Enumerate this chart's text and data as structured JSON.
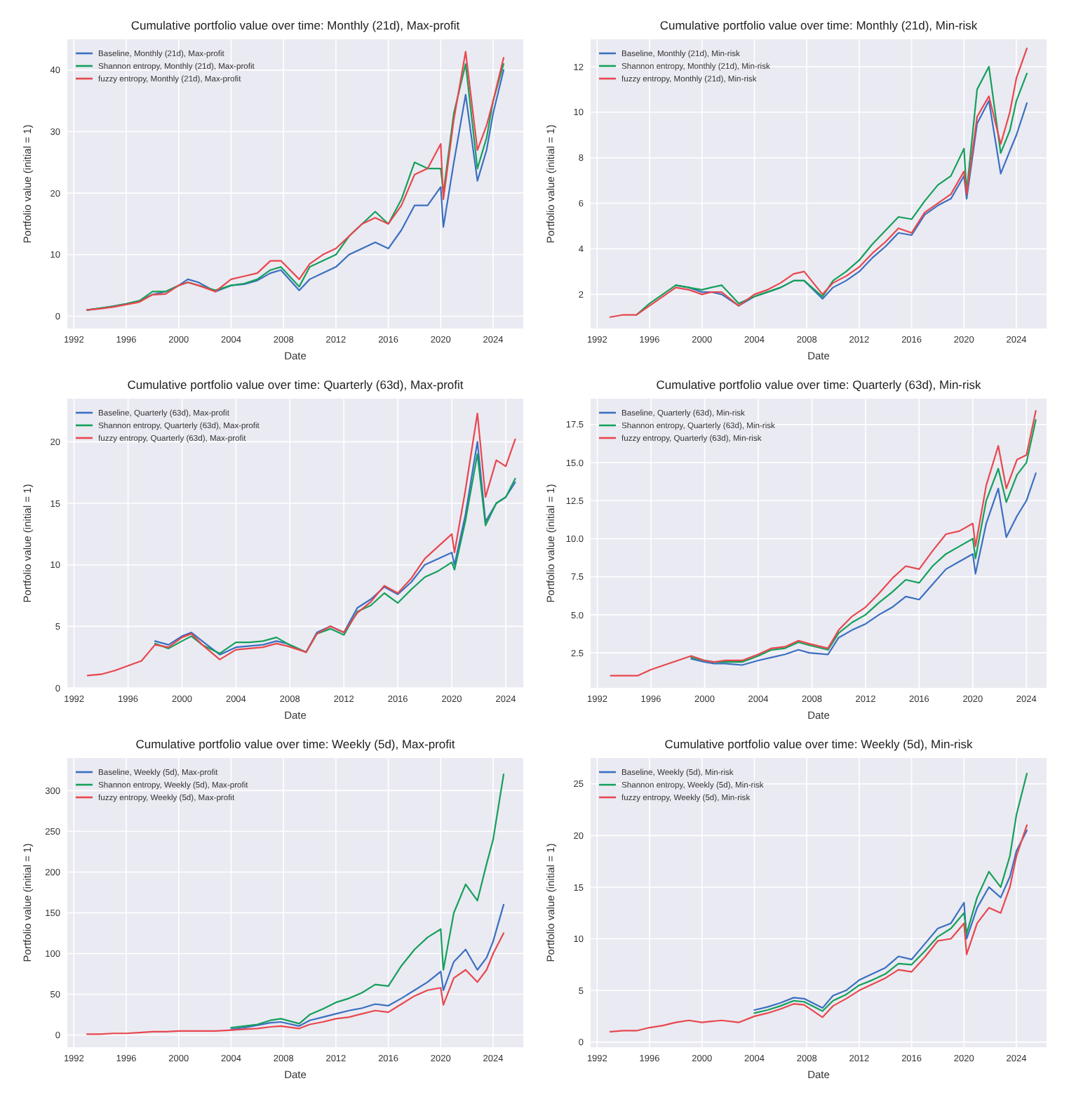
{
  "chart_data": [
    {
      "type": "line",
      "title": "Cumulative portfolio value over time: Monthly (21d), Max-profit",
      "xlabel": "Date",
      "ylabel": "Portfolio value (initial = 1)",
      "legend": "top left",
      "grid": true,
      "xlim": [
        1991.5,
        2026.3
      ],
      "xticks": [
        1992,
        1996,
        2000,
        2004,
        2008,
        2012,
        2016,
        2020,
        2024
      ],
      "ylim": [
        -2,
        45
      ],
      "yticks": [
        0,
        10,
        20,
        30,
        40
      ],
      "x": [
        1993,
        1994,
        1995,
        1996,
        1997,
        1998,
        1999,
        2000,
        2000.7,
        2001.5,
        2002.8,
        2004,
        2005,
        2006,
        2007,
        2007.8,
        2009.2,
        2010,
        2011,
        2012,
        2013,
        2014,
        2015,
        2016,
        2017,
        2018,
        2019,
        2020.0,
        2020.2,
        2021,
        2021.9,
        2022.8,
        2023.5,
        2024,
        2024.8
      ],
      "series": [
        {
          "name": "Baseline, Monthly (21d), Max-profit",
          "color": "#3a6fc1",
          "values": [
            1,
            1.3,
            1.6,
            2,
            2.5,
            3.5,
            4,
            5,
            6,
            5.5,
            4,
            5,
            5.2,
            5.8,
            7,
            7.5,
            4.2,
            6,
            7,
            8,
            10,
            11,
            12,
            11,
            14,
            18,
            18,
            21,
            14.5,
            25,
            36,
            22,
            27,
            33,
            40
          ]
        },
        {
          "name": "Shannon entropy, Monthly (21d), Max-profit",
          "color": "#14a05a",
          "values": [
            1,
            1.3,
            1.6,
            2,
            2.5,
            4,
            4,
            5,
            5.5,
            5,
            4.2,
            5,
            5.3,
            6,
            7.5,
            8,
            4.8,
            8,
            9,
            10,
            13,
            15,
            17,
            15,
            19,
            25,
            24,
            24,
            20,
            33,
            41,
            24,
            29,
            35,
            41
          ]
        },
        {
          "name": "fuzzy entropy, Monthly (21d), Max-profit",
          "color": "#e8474d",
          "values": [
            1,
            1.2,
            1.5,
            1.9,
            2.3,
            3.5,
            3.6,
            5,
            5.5,
            5,
            4,
            6,
            6.5,
            7,
            9,
            9,
            6,
            8.5,
            10,
            11,
            13,
            15,
            16,
            15,
            18,
            23,
            24,
            28,
            19,
            32,
            43,
            27,
            31,
            35,
            42
          ]
        }
      ]
    },
    {
      "type": "line",
      "title": "Cumulative portfolio value over time: Monthly (21d), Min-risk",
      "xlabel": "Date",
      "ylabel": "Portfolio value (initial = 1)",
      "legend": "top left",
      "grid": true,
      "xlim": [
        1991.5,
        2026.3
      ],
      "xticks": [
        1992,
        1996,
        2000,
        2004,
        2008,
        2012,
        2016,
        2020,
        2024
      ],
      "ylim": [
        0.5,
        13.2
      ],
      "yticks": [
        2,
        4,
        6,
        8,
        10,
        12
      ],
      "x": [
        1993,
        1994,
        1995,
        1996,
        1997,
        1998,
        1999,
        2000,
        2000.7,
        2001.5,
        2002.8,
        2004,
        2005,
        2006,
        2007,
        2007.8,
        2009.2,
        2010,
        2011,
        2012,
        2013,
        2014,
        2015,
        2016,
        2017,
        2018,
        2019,
        2020.0,
        2020.2,
        2021,
        2021.9,
        2022.8,
        2023.5,
        2024,
        2024.8
      ],
      "series": [
        {
          "name": "Baseline, Monthly (21d), Min-risk",
          "color": "#3a6fc1",
          "values": [
            null,
            null,
            null,
            null,
            null,
            2.4,
            2.3,
            2.1,
            2.1,
            2.0,
            1.5,
            1.9,
            2.1,
            2.3,
            2.6,
            2.6,
            1.8,
            2.3,
            2.6,
            3.0,
            3.6,
            4.1,
            4.7,
            4.6,
            5.5,
            5.9,
            6.2,
            7.2,
            6.2,
            9.5,
            10.5,
            7.3,
            8.3,
            9,
            10.4
          ]
        },
        {
          "name": "Shannon entropy, Monthly (21d), Min-risk",
          "color": "#14a05a",
          "values": [
            null,
            null,
            1.1,
            1.6,
            2.0,
            2.4,
            2.3,
            2.2,
            2.3,
            2.4,
            1.6,
            1.9,
            2.1,
            2.3,
            2.6,
            2.6,
            1.9,
            2.6,
            3.0,
            3.5,
            4.2,
            4.8,
            5.4,
            5.3,
            6.1,
            6.8,
            7.2,
            8.4,
            6.5,
            11,
            12,
            8.2,
            9.2,
            10.5,
            11.7
          ]
        },
        {
          "name": "fuzzy entropy, Monthly (21d), Min-risk",
          "color": "#e8474d",
          "values": [
            1,
            1.1,
            1.1,
            1.5,
            1.9,
            2.3,
            2.2,
            2.0,
            2.1,
            2.1,
            1.5,
            2.0,
            2.2,
            2.5,
            2.9,
            3.0,
            2.0,
            2.5,
            2.8,
            3.2,
            3.8,
            4.3,
            4.9,
            4.7,
            5.6,
            6.0,
            6.4,
            7.4,
            6.4,
            9.8,
            10.7,
            8.6,
            10,
            11.5,
            12.8
          ]
        }
      ]
    },
    {
      "type": "line",
      "title": "Cumulative portfolio value over time: Quarterly (63d), Max-profit",
      "xlabel": "Date",
      "ylabel": "Portfolio value (initial = 1)",
      "legend": "top left",
      "grid": true,
      "xlim": [
        1991.5,
        2025.3
      ],
      "xticks": [
        1992,
        1996,
        2000,
        2004,
        2008,
        2012,
        2016,
        2020,
        2024
      ],
      "ylim": [
        0,
        23.5
      ],
      "yticks": [
        0,
        5,
        10,
        15,
        20
      ],
      "x": [
        1993,
        1994,
        1995,
        1996,
        1997,
        1998,
        1999,
        2000,
        2000.7,
        2001.5,
        2002.8,
        2004,
        2005,
        2006,
        2007,
        2007.8,
        2009.2,
        2010,
        2011,
        2012,
        2013,
        2014,
        2015,
        2016,
        2017,
        2018,
        2019,
        2020.0,
        2020.2,
        2021,
        2021.9,
        2022.5,
        2023.3,
        2024,
        2024.7
      ],
      "series": [
        {
          "name": "Baseline, Quarterly (63d), Max-profit",
          "color": "#3a6fc1",
          "values": [
            null,
            null,
            null,
            null,
            null,
            3.8,
            3.5,
            4.2,
            4.5,
            3.8,
            2.7,
            3.3,
            3.4,
            3.5,
            3.8,
            3.6,
            2.9,
            4.5,
            5,
            4.5,
            6.5,
            7.2,
            8.2,
            7.6,
            8.6,
            10,
            10.5,
            11,
            10,
            14,
            20,
            13.5,
            15,
            15.5,
            16.7
          ]
        },
        {
          "name": "Shannon entropy, Quarterly (63d), Max-profit",
          "color": "#14a05a",
          "values": [
            null,
            null,
            null,
            null,
            null,
            3.6,
            3.2,
            3.8,
            4.2,
            3.5,
            2.8,
            3.7,
            3.7,
            3.8,
            4.1,
            3.6,
            2.9,
            4.4,
            4.8,
            4.3,
            6.2,
            6.7,
            7.7,
            6.9,
            8,
            9,
            9.5,
            10.2,
            9.6,
            13.5,
            19,
            13.2,
            15,
            15.5,
            17.0
          ]
        },
        {
          "name": "fuzzy entropy, Quarterly (63d), Max-profit",
          "color": "#e8474d",
          "values": [
            1,
            1.1,
            1.4,
            1.8,
            2.2,
            3.5,
            3.3,
            4.1,
            4.4,
            3.5,
            2.3,
            3.1,
            3.2,
            3.3,
            3.6,
            3.4,
            2.9,
            4.4,
            5,
            4.5,
            6.1,
            7,
            8.3,
            7.7,
            8.9,
            10.5,
            11.5,
            12.5,
            11,
            16,
            22.3,
            15.5,
            18.5,
            18,
            20.2
          ]
        }
      ]
    },
    {
      "type": "line",
      "title": "Cumulative portfolio value over time: Quarterly (63d), Min-risk",
      "xlabel": "Date",
      "ylabel": "Portfolio value (initial = 1)",
      "legend": "top left",
      "grid": true,
      "xlim": [
        1991.5,
        2025.5
      ],
      "xticks": [
        1992,
        1996,
        2000,
        2004,
        2008,
        2012,
        2016,
        2020,
        2024
      ],
      "ylim": [
        0.2,
        19.2
      ],
      "yticks": [
        {
          "value": 2.5,
          "label": "2.5"
        },
        {
          "value": 5,
          "label": "5.0"
        },
        {
          "value": 7.5,
          "label": "7.5"
        },
        {
          "value": 10,
          "label": "10.0"
        },
        {
          "value": 12.5,
          "label": "12.5"
        },
        {
          "value": 15,
          "label": "15.0"
        },
        {
          "value": 17.5,
          "label": "17.5"
        }
      ],
      "x": [
        1993,
        1994,
        1995,
        1996,
        1997,
        1998,
        1999,
        2000,
        2000.7,
        2001.5,
        2002.8,
        2004,
        2005,
        2006,
        2007,
        2007.8,
        2009.2,
        2010,
        2011,
        2012,
        2013,
        2014,
        2015,
        2016,
        2017,
        2018,
        2019,
        2020.0,
        2020.2,
        2021,
        2021.9,
        2022.5,
        2023.3,
        2024,
        2024.7
      ],
      "series": [
        {
          "name": "Baseline, Quarterly (63d), Min-risk",
          "color": "#3a6fc1",
          "values": [
            null,
            null,
            null,
            null,
            null,
            null,
            2.1,
            1.9,
            1.8,
            1.8,
            1.7,
            2.0,
            2.2,
            2.4,
            2.7,
            2.5,
            2.4,
            3.5,
            4,
            4.4,
            5,
            5.5,
            6.2,
            6,
            7,
            8,
            8.5,
            9,
            7.7,
            11,
            13.3,
            10.1,
            11.5,
            12.5,
            14.3
          ]
        },
        {
          "name": "Shannon entropy, Quarterly (63d), Min-risk",
          "color": "#14a05a",
          "values": [
            null,
            null,
            null,
            null,
            null,
            null,
            2.2,
            2.0,
            1.9,
            1.9,
            1.9,
            2.3,
            2.7,
            2.8,
            3.2,
            3.0,
            2.7,
            3.8,
            4.5,
            5,
            5.8,
            6.5,
            7.3,
            7.1,
            8.2,
            9,
            9.5,
            10,
            8.7,
            12.5,
            14.6,
            12.4,
            14.2,
            15,
            17.8
          ]
        },
        {
          "name": "fuzzy entropy, Quarterly (63d), Min-risk",
          "color": "#e8474d",
          "values": [
            1,
            1,
            1,
            1.4,
            1.7,
            2.0,
            2.3,
            2.0,
            1.9,
            2.0,
            2.0,
            2.4,
            2.8,
            2.9,
            3.3,
            3.1,
            2.8,
            4,
            4.9,
            5.5,
            6.4,
            7.4,
            8.2,
            8,
            9.2,
            10.3,
            10.5,
            11,
            9.5,
            13.5,
            16.1,
            13.3,
            15.2,
            15.5,
            18.4
          ]
        }
      ]
    },
    {
      "type": "line",
      "title": "Cumulative portfolio value over time: Weekly (5d), Max-profit",
      "xlabel": "Date",
      "ylabel": "Portfolio value (initial = 1)",
      "legend": "top left",
      "grid": true,
      "xlim": [
        1991.5,
        2026.3
      ],
      "xticks": [
        1992,
        1996,
        2000,
        2004,
        2008,
        2012,
        2016,
        2020,
        2024
      ],
      "ylim": [
        -15,
        340
      ],
      "yticks": [
        0,
        50,
        100,
        150,
        200,
        250,
        300
      ],
      "x": [
        1993,
        1994,
        1995,
        1996,
        1997,
        1998,
        1999,
        2000,
        2000.7,
        2001.5,
        2002.8,
        2004,
        2005,
        2006,
        2007,
        2007.8,
        2009.2,
        2010,
        2011,
        2012,
        2013,
        2014,
        2015,
        2016,
        2017,
        2018,
        2019,
        2020.0,
        2020.2,
        2021,
        2021.9,
        2022.8,
        2023.5,
        2024,
        2024.8
      ],
      "series": [
        {
          "name": "Baseline, Weekly (5d), Max-profit",
          "color": "#3a6fc1",
          "values": [
            null,
            null,
            null,
            null,
            null,
            null,
            null,
            null,
            null,
            null,
            null,
            7,
            9,
            12,
            15,
            16,
            11,
            18,
            22,
            26,
            30,
            33,
            38,
            36,
            45,
            55,
            65,
            78,
            55,
            90,
            105,
            80,
            95,
            115,
            160
          ]
        },
        {
          "name": "Shannon entropy, Weekly (5d), Max-profit",
          "color": "#14a05a",
          "values": [
            null,
            null,
            null,
            null,
            null,
            null,
            null,
            null,
            null,
            null,
            null,
            9,
            11,
            13,
            18,
            20,
            14,
            25,
            32,
            40,
            45,
            52,
            62,
            60,
            85,
            105,
            120,
            130,
            80,
            150,
            185,
            165,
            210,
            240,
            320
          ]
        },
        {
          "name": "fuzzy entropy, Weekly (5d), Max-profit",
          "color": "#e8474d",
          "values": [
            1,
            1,
            2,
            2,
            3,
            4,
            4,
            5,
            5,
            5,
            5,
            6,
            7,
            8,
            10,
            11,
            8,
            13,
            16,
            20,
            22,
            26,
            30,
            28,
            38,
            48,
            55,
            58,
            37,
            70,
            80,
            65,
            80,
            100,
            125
          ]
        }
      ]
    },
    {
      "type": "line",
      "title": "Cumulative portfolio value over time: Weekly (5d), Min-risk",
      "xlabel": "Date",
      "ylabel": "Portfolio value (initial = 1)",
      "legend": "top left",
      "grid": true,
      "xlim": [
        1991.5,
        2026.3
      ],
      "xticks": [
        1992,
        1996,
        2000,
        2004,
        2008,
        2012,
        2016,
        2020,
        2024
      ],
      "ylim": [
        -0.5,
        27.5
      ],
      "yticks": [
        0,
        5,
        10,
        15,
        20,
        25
      ],
      "x": [
        1993,
        1994,
        1995,
        1996,
        1997,
        1998,
        1999,
        2000,
        2000.7,
        2001.5,
        2002.8,
        2004,
        2005,
        2006,
        2007,
        2007.8,
        2009.2,
        2010,
        2011,
        2012,
        2013,
        2014,
        2015,
        2016,
        2017,
        2018,
        2019,
        2020.0,
        2020.2,
        2021,
        2021.9,
        2022.8,
        2023.5,
        2024,
        2024.8
      ],
      "series": [
        {
          "name": "Baseline, Weekly (5d), Min-risk",
          "color": "#3a6fc1",
          "values": [
            null,
            null,
            null,
            null,
            null,
            null,
            null,
            null,
            null,
            null,
            null,
            3.1,
            3.4,
            3.8,
            4.3,
            4.2,
            3.3,
            4.5,
            5,
            6,
            6.6,
            7.2,
            8.3,
            8,
            9.5,
            11,
            11.5,
            13.5,
            10,
            13,
            15,
            14,
            16,
            18.5,
            20.5
          ]
        },
        {
          "name": "Shannon entropy, Weekly (5d), Min-risk",
          "color": "#14a05a",
          "values": [
            null,
            null,
            null,
            null,
            null,
            null,
            null,
            null,
            null,
            null,
            null,
            2.8,
            3.1,
            3.5,
            4.0,
            3.9,
            3.0,
            4,
            4.6,
            5.5,
            6,
            6.6,
            7.6,
            7.5,
            8.8,
            10.2,
            11,
            12.5,
            10.5,
            14,
            16.5,
            15,
            18,
            22,
            26
          ]
        },
        {
          "name": "fuzzy entropy, Weekly (5d), Min-risk",
          "color": "#e8474d",
          "values": [
            1,
            1.1,
            1.1,
            1.4,
            1.6,
            1.9,
            2.1,
            1.9,
            2.0,
            2.1,
            1.9,
            2.5,
            2.8,
            3.2,
            3.7,
            3.6,
            2.4,
            3.5,
            4.2,
            5,
            5.6,
            6.2,
            7,
            6.8,
            8.2,
            9.8,
            10,
            11.5,
            8.5,
            11.5,
            13,
            12.5,
            15,
            18,
            21
          ]
        }
      ]
    }
  ]
}
